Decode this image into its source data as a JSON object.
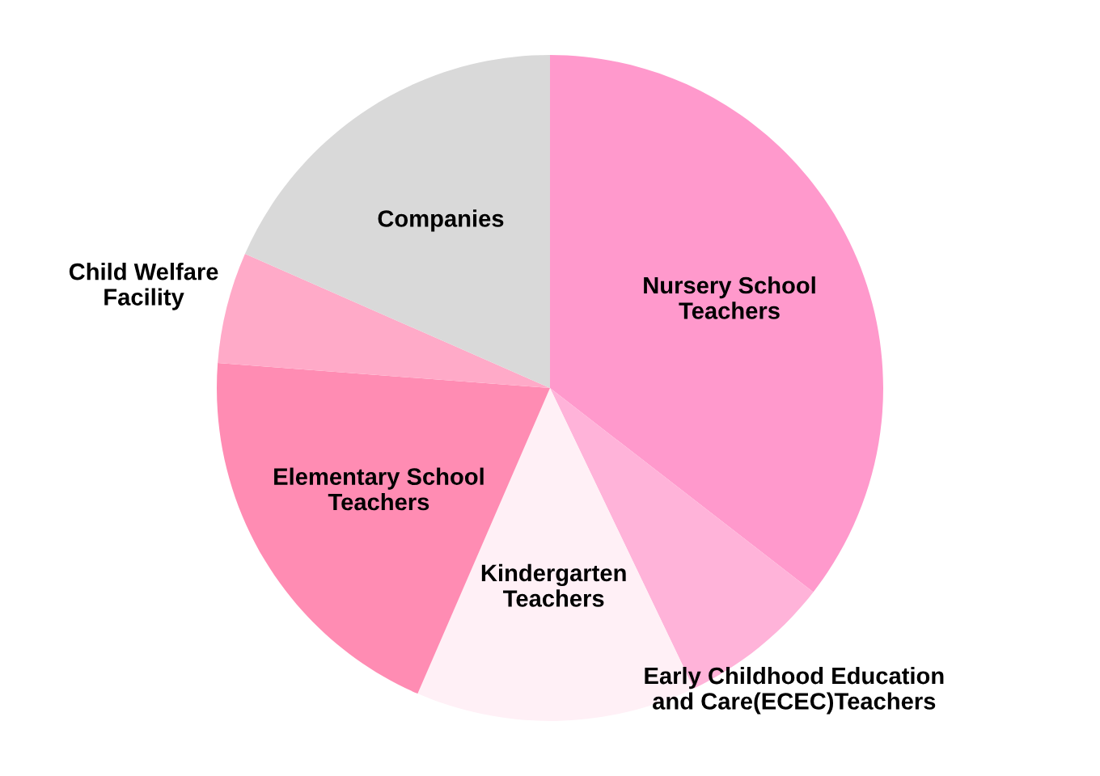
{
  "chart_data": {
    "type": "pie",
    "categories": [
      "Nursery School\nTeachers",
      "Early Childhood Education\nand Care(ECEC)Teachers",
      "Kindergarten\nTeachers",
      "Elementary School\nTeachers",
      "Child Welfare\nFacility",
      "Companies"
    ],
    "values": [
      35.5,
      7.4,
      13.6,
      19.7,
      5.4,
      18.4
    ],
    "colors": [
      "#ff99cc",
      "#ffb3d9",
      "#fff0f6",
      "#ff8cb3",
      "#ffaac8",
      "#d9d9d9"
    ],
    "legend": false
  }
}
